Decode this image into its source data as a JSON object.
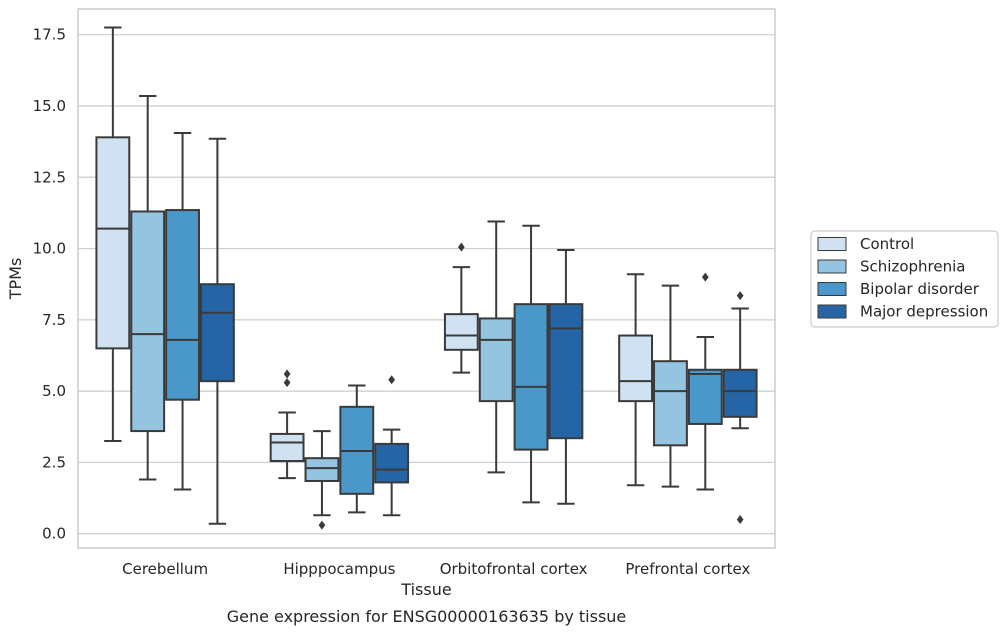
{
  "chart_data": {
    "type": "boxplot",
    "title": "",
    "caption": "Gene expression for ENSG00000163635 by tissue",
    "xlabel": "Tissue",
    "ylabel": "TPMs",
    "ylim": [
      -0.5,
      18.4
    ],
    "yticks": [
      "0.0",
      "2.5",
      "5.0",
      "7.5",
      "10.0",
      "12.5",
      "15.0",
      "17.5"
    ],
    "grid": "horizontal",
    "legend_position": "right",
    "categories": [
      "Cerebellum",
      "Hipppocampus",
      "Orbitofrontal cortex",
      "Prefrontal cortex"
    ],
    "series": [
      {
        "name": "Control",
        "color": "#d0e1f2",
        "boxes": [
          {
            "min": 3.25,
            "q1": 6.5,
            "median": 10.7,
            "q3": 13.9,
            "max": 17.75,
            "outliers": []
          },
          {
            "min": 1.95,
            "q1": 2.55,
            "median": 3.2,
            "q3": 3.5,
            "max": 4.25,
            "outliers": [
              5.3,
              5.6
            ]
          },
          {
            "min": 5.65,
            "q1": 6.45,
            "median": 6.95,
            "q3": 7.7,
            "max": 9.35,
            "outliers": [
              10.05
            ]
          },
          {
            "min": 1.7,
            "q1": 4.65,
            "median": 5.35,
            "q3": 6.95,
            "max": 9.1,
            "outliers": []
          }
        ]
      },
      {
        "name": "Schizophrenia",
        "color": "#94c4df",
        "boxes": [
          {
            "min": 1.9,
            "q1": 3.6,
            "median": 7.0,
            "q3": 11.3,
            "max": 15.35,
            "outliers": []
          },
          {
            "min": 0.65,
            "q1": 1.85,
            "median": 2.3,
            "q3": 2.65,
            "max": 3.6,
            "outliers": [
              0.3
            ]
          },
          {
            "min": 2.15,
            "q1": 4.65,
            "median": 6.8,
            "q3": 7.55,
            "max": 10.95,
            "outliers": []
          },
          {
            "min": 1.65,
            "q1": 3.1,
            "median": 5.0,
            "q3": 6.05,
            "max": 8.7,
            "outliers": []
          }
        ]
      },
      {
        "name": "Bipolar disorder",
        "color": "#4a98c9",
        "boxes": [
          {
            "min": 1.55,
            "q1": 4.7,
            "median": 6.8,
            "q3": 11.35,
            "max": 14.05,
            "outliers": []
          },
          {
            "min": 0.75,
            "q1": 1.4,
            "median": 2.9,
            "q3": 4.45,
            "max": 5.2,
            "outliers": []
          },
          {
            "min": 1.1,
            "q1": 2.95,
            "median": 5.15,
            "q3": 8.05,
            "max": 10.8,
            "outliers": []
          },
          {
            "min": 1.55,
            "q1": 3.85,
            "median": 5.6,
            "q3": 5.75,
            "max": 6.9,
            "outliers": [
              9.0
            ]
          }
        ]
      },
      {
        "name": "Major depression",
        "color": "#2565a5",
        "boxes": [
          {
            "min": 0.35,
            "q1": 5.35,
            "median": 7.75,
            "q3": 8.75,
            "max": 13.85,
            "outliers": []
          },
          {
            "min": 0.65,
            "q1": 1.8,
            "median": 2.25,
            "q3": 3.15,
            "max": 3.65,
            "outliers": [
              5.4
            ]
          },
          {
            "min": 1.05,
            "q1": 3.35,
            "median": 7.2,
            "q3": 8.05,
            "max": 9.95,
            "outliers": []
          },
          {
            "min": 3.7,
            "q1": 4.1,
            "median": 5.0,
            "q3": 5.75,
            "max": 7.9,
            "outliers": [
              0.5,
              8.35
            ]
          }
        ]
      }
    ]
  }
}
